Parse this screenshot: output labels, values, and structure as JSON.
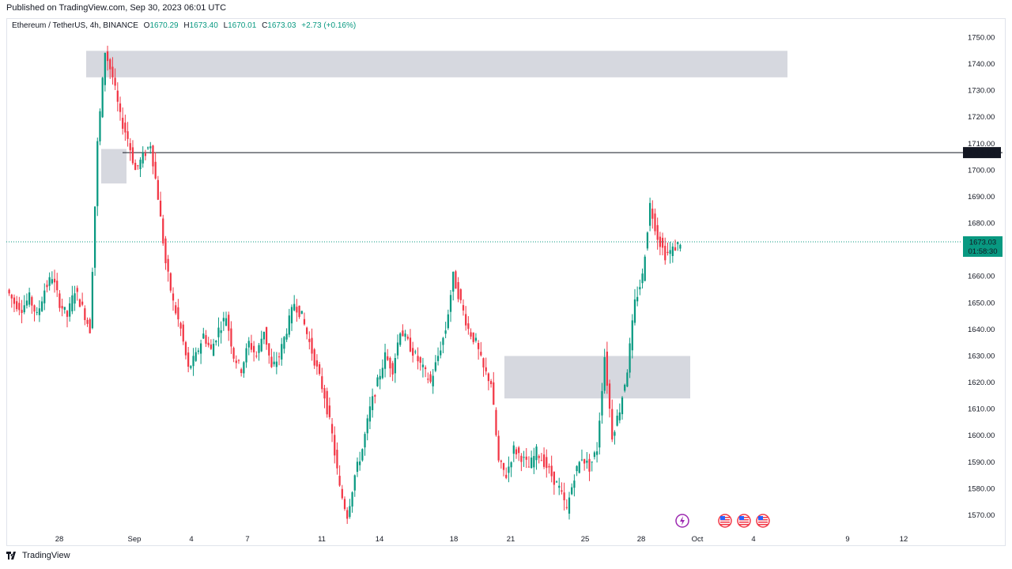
{
  "header": {
    "published": "Published on TradingView.com, Sep 30, 2023 06:01 UTC"
  },
  "legend": {
    "symbol": "Ethereum / TetherUS, 4h, BINANCE",
    "open_label": "O",
    "open": "1670.29",
    "high_label": "H",
    "high": "1673.40",
    "low_label": "L",
    "low": "1670.01",
    "close_label": "C",
    "close": "1673.03",
    "change": "+2.73 (+0.16%)"
  },
  "footer": {
    "brand": "TradingView"
  },
  "colors": {
    "up": "#089981",
    "down": "#f23645",
    "zone": "#d1d4dc",
    "level_line": "#131722",
    "price_badge": "#089981"
  },
  "icons": [
    "lightning-event-icon",
    "us-flag-event-icon"
  ],
  "chart_data": {
    "type": "candlestick",
    "timeframe": "4h",
    "ylim": [
      1565,
      1755
    ],
    "y_ticks": [
      "1750.00",
      "1740.00",
      "1730.00",
      "1720.00",
      "1710.00",
      "1700.00",
      "1690.00",
      "1680.00",
      "1670.00",
      "1660.00",
      "1650.00",
      "1640.00",
      "1630.00",
      "1620.00",
      "1610.00",
      "1600.00",
      "1590.00",
      "1580.00",
      "1570.00"
    ],
    "x_ticks": [
      "28",
      "Sep",
      "4",
      "7",
      "11",
      "14",
      "18",
      "21",
      "25",
      "28",
      "Oct",
      "4",
      "9",
      "12"
    ],
    "level_line": {
      "price": "1706.64"
    },
    "current_price": {
      "price": "1673.03",
      "countdown": "01:58:30"
    },
    "zones": [
      {
        "from": "Aug 29",
        "to": "Oct 3",
        "low": 1735,
        "high": 1745
      },
      {
        "from": "Aug 30",
        "to": "Aug 31",
        "low": 1695,
        "high": 1708
      },
      {
        "from": "Sep 20",
        "to": "Sep 29",
        "low": 1614,
        "high": 1630
      }
    ],
    "candles_note": "approximate OHLC path",
    "path": [
      [
        1655,
        1650
      ],
      [
        1650,
        1648
      ],
      [
        1648,
        1652
      ],
      [
        1652,
        1645
      ],
      [
        1645,
        1655
      ],
      [
        1655,
        1660
      ],
      [
        1660,
        1650
      ],
      [
        1650,
        1645
      ],
      [
        1645,
        1655
      ],
      [
        1655,
        1648
      ],
      [
        1648,
        1640
      ],
      [
        1640,
        1710
      ],
      [
        1710,
        1745
      ],
      [
        1745,
        1735
      ],
      [
        1735,
        1720
      ],
      [
        1720,
        1712
      ],
      [
        1712,
        1700
      ],
      [
        1700,
        1705
      ],
      [
        1705,
        1710
      ],
      [
        1710,
        1690
      ],
      [
        1690,
        1665
      ],
      [
        1665,
        1650
      ],
      [
        1650,
        1640
      ],
      [
        1640,
        1625
      ],
      [
        1625,
        1630
      ],
      [
        1630,
        1638
      ],
      [
        1638,
        1632
      ],
      [
        1632,
        1640
      ],
      [
        1640,
        1645
      ],
      [
        1645,
        1630
      ],
      [
        1630,
        1625
      ],
      [
        1625,
        1635
      ],
      [
        1635,
        1630
      ],
      [
        1630,
        1640
      ],
      [
        1640,
        1625
      ],
      [
        1625,
        1630
      ],
      [
        1630,
        1640
      ],
      [
        1640,
        1650
      ],
      [
        1650,
        1645
      ],
      [
        1645,
        1635
      ],
      [
        1635,
        1625
      ],
      [
        1625,
        1615
      ],
      [
        1615,
        1600
      ],
      [
        1600,
        1580
      ],
      [
        1580,
        1570
      ],
      [
        1570,
        1585
      ],
      [
        1585,
        1595
      ],
      [
        1595,
        1610
      ],
      [
        1610,
        1620
      ],
      [
        1620,
        1630
      ],
      [
        1630,
        1625
      ],
      [
        1625,
        1640
      ],
      [
        1640,
        1635
      ],
      [
        1635,
        1630
      ],
      [
        1630,
        1625
      ],
      [
        1625,
        1620
      ],
      [
        1620,
        1630
      ],
      [
        1630,
        1640
      ],
      [
        1640,
        1660
      ],
      [
        1660,
        1650
      ],
      [
        1650,
        1640
      ],
      [
        1640,
        1635
      ],
      [
        1635,
        1625
      ],
      [
        1625,
        1620
      ],
      [
        1620,
        1590
      ],
      [
        1590,
        1585
      ],
      [
        1585,
        1595
      ],
      [
        1595,
        1592
      ],
      [
        1592,
        1588
      ],
      [
        1588,
        1594
      ],
      [
        1594,
        1590
      ],
      [
        1590,
        1585
      ],
      [
        1585,
        1580
      ],
      [
        1580,
        1572
      ],
      [
        1572,
        1585
      ],
      [
        1585,
        1592
      ],
      [
        1592,
        1588
      ],
      [
        1588,
        1595
      ],
      [
        1595,
        1630
      ],
      [
        1630,
        1600
      ],
      [
        1600,
        1610
      ],
      [
        1610,
        1625
      ],
      [
        1625,
        1650
      ],
      [
        1650,
        1660
      ],
      [
        1660,
        1687
      ],
      [
        1687,
        1675
      ],
      [
        1675,
        1668
      ],
      [
        1668,
        1670
      ],
      [
        1670,
        1673
      ]
    ]
  }
}
